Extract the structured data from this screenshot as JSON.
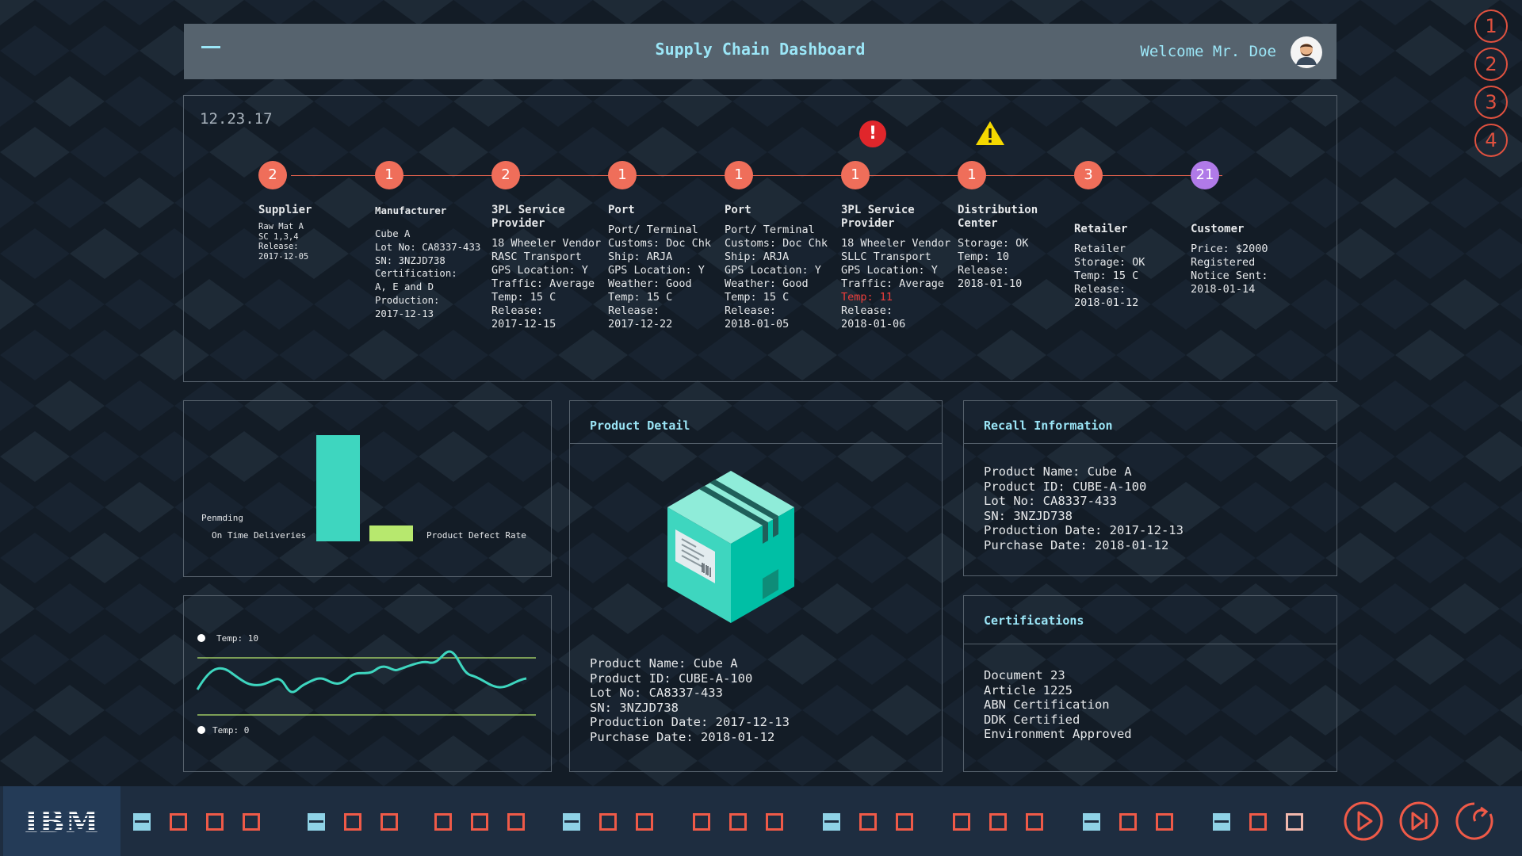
{
  "header": {
    "title": "Supply Chain Dashboard",
    "welcome": "Welcome Mr. Doe"
  },
  "step_numbers": [
    "1",
    "2",
    "3",
    "4"
  ],
  "timeline": {
    "date": "12.23.17",
    "stages": [
      {
        "count": "2",
        "title": "Supplier",
        "lines": [
          "Raw Mat A",
          "SC 1,3,4",
          "Release:",
          "2017-12-05"
        ]
      },
      {
        "count": "1",
        "title": "Manufacturer",
        "lines": [
          "Cube A",
          "Lot No: CA8337-433",
          "SN: 3NZJD738",
          "Certification:",
          "A, E and D",
          "Production:",
          "2017-12-13"
        ]
      },
      {
        "count": "2",
        "title": "3PL Service Provider",
        "lines": [
          "18 Wheeler Vendor",
          "RASC Transport",
          "GPS Location: Y",
          "Traffic: Average",
          "Temp: 15 C",
          "Release:",
          "2017-12-15"
        ]
      },
      {
        "count": "1",
        "title": "Port",
        "lines": [
          "Port/ Terminal",
          "Customs: Doc Chk",
          "Ship: ARJA",
          "GPS Location: Y",
          "Weather: Good",
          "Temp: 15 C",
          "Release:",
          "2017-12-22"
        ]
      },
      {
        "count": "1",
        "title": "Port",
        "lines": [
          "Port/ Terminal",
          "Customs: Doc Chk",
          "Ship: ARJA",
          "GPS Location: Y",
          "Weather: Good",
          "Temp: 15 C",
          "Release:",
          "2018-01-05"
        ]
      },
      {
        "count": "1",
        "title": "3PL Service Provider",
        "alert": "!",
        "lines": [
          "18 Wheeler Vendor",
          "SLLC Transport",
          "GPS Location: Y",
          "Traffic: Average",
          "Temp: 11",
          "Release:",
          "2018-01-06"
        ]
      },
      {
        "count": "1",
        "title": "Distribution Center",
        "lines": [
          "Storage: OK",
          "Temp: 10",
          "Release:",
          "2018-01-10"
        ]
      },
      {
        "count": "3",
        "title": "Retailer",
        "lines": [
          "Retailer",
          "Storage: OK",
          "Temp: 15 C",
          "Release:",
          "2018-01-12"
        ]
      },
      {
        "count": "21",
        "title": "Customer",
        "lines": [
          "Price: $2000",
          "Registered",
          "Notice Sent:",
          "2018-01-14"
        ]
      }
    ]
  },
  "bar_panel": {
    "label_pending": "Penmding",
    "label_on_time": "On Time Deliveries",
    "label_defect": "Product Defect Rate"
  },
  "temp_panel": {
    "label_high": "Temp: 10",
    "label_low": "Temp: 0"
  },
  "product_detail": {
    "title": "Product Detail",
    "lines": [
      "Product Name: Cube A",
      "Product ID: CUBE-A-100",
      "Lot No: CA8337-433",
      "SN: 3NZJD738",
      "Production Date: 2017-12-13",
      "Purchase Date: 2018-01-12"
    ]
  },
  "recall": {
    "title": "Recall Information",
    "lines": [
      "Product Name: Cube A",
      "Product ID: CUBE-A-100",
      "Lot No: CA8337-433",
      "SN: 3NZJD738",
      "Production Date: 2017-12-13",
      "Purchase Date: 2018-01-12"
    ]
  },
  "certifications": {
    "title": "Certifications",
    "lines": [
      "Document 23",
      "Article 1225",
      "ABN Certification",
      "DDK Certified",
      "Environment Approved"
    ]
  },
  "taskbar": {
    "logo": "IBM",
    "items": [
      "blue",
      "red",
      "red",
      "red",
      "blue",
      "red",
      "red",
      "red",
      "red",
      "red",
      "blue",
      "red",
      "red",
      "red",
      "red",
      "red",
      "blue",
      "red",
      "red",
      "red",
      "red",
      "red",
      "blue",
      "red",
      "red",
      "blue",
      "red",
      "pink"
    ]
  },
  "colors": {
    "accent": "#9be6f7",
    "node": "#ef6e5a",
    "node_customer": "#b07ae8",
    "alert": "#e0262b",
    "warning": "#f5d800",
    "teal": "#3ed6bf",
    "lime": "#b7e86e"
  }
}
